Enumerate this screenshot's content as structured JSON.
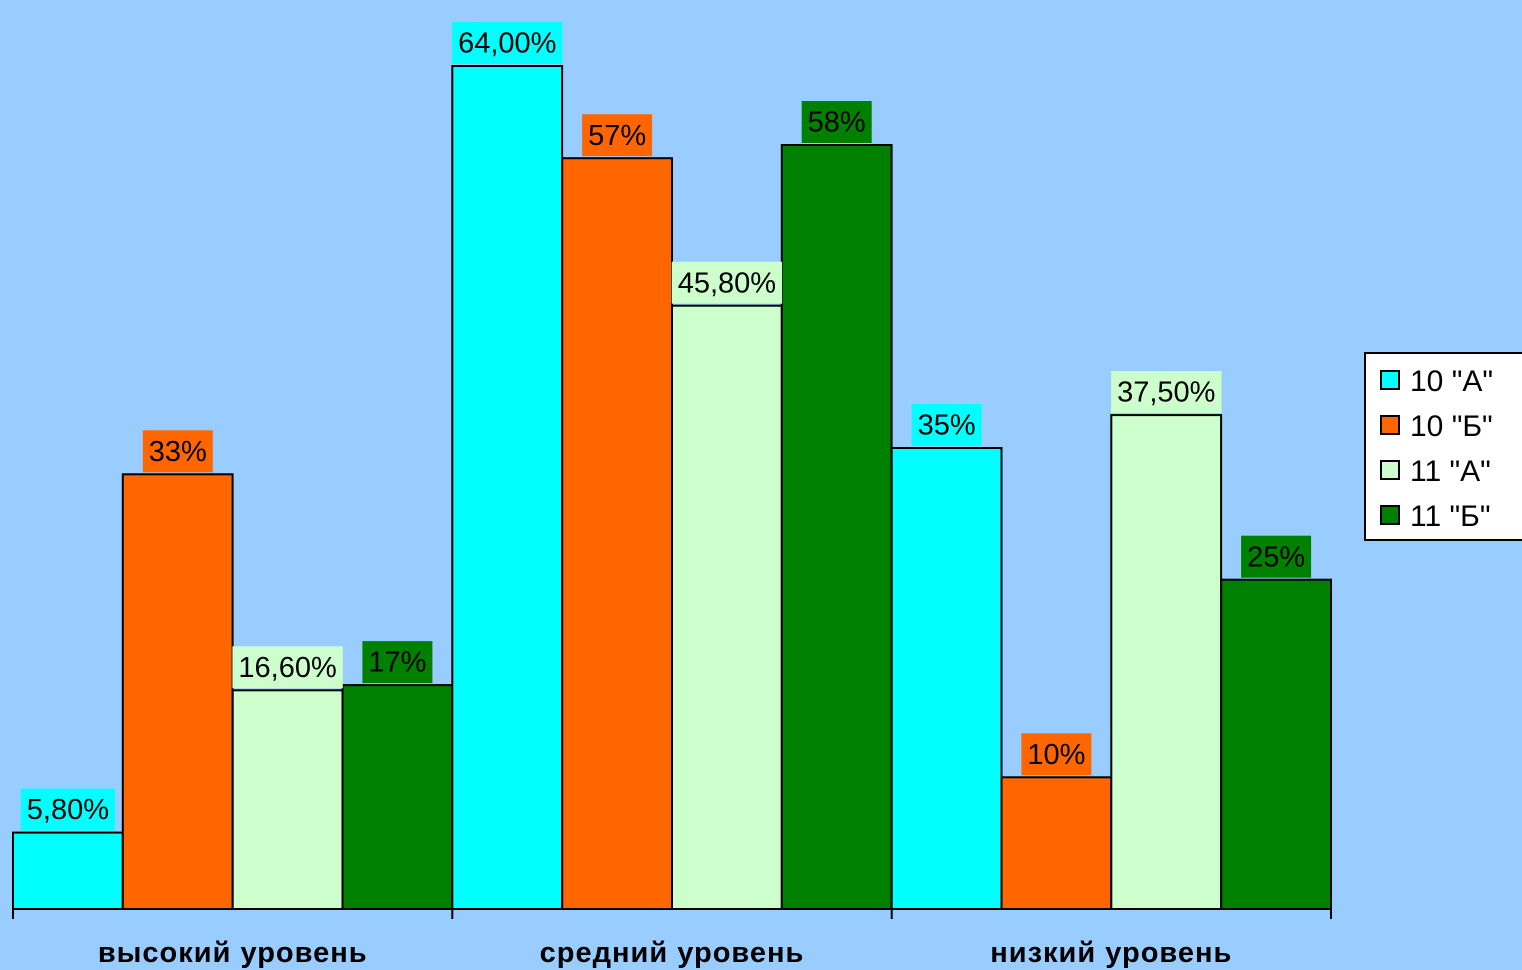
{
  "chart_data": {
    "type": "bar",
    "categories": [
      "высокий уровень",
      "средний уровень",
      "низкий уровень"
    ],
    "series": [
      {
        "name": "10 \"А\"",
        "color": "#00ffff",
        "values": [
          5.8,
          64.0,
          35.0
        ],
        "labels": [
          "5,80%",
          "64,00%",
          "35%"
        ]
      },
      {
        "name": "10 \"Б\"",
        "color": "#ff6600",
        "values": [
          33,
          57,
          10
        ],
        "labels": [
          "33%",
          "57%",
          "10%"
        ]
      },
      {
        "name": "11 \"А\"",
        "color": "#ccffcc",
        "values": [
          16.6,
          45.8,
          37.5
        ],
        "labels": [
          "16,60%",
          "45,80%",
          "37,50%"
        ]
      },
      {
        "name": "11 \"Б\"",
        "color": "#008000",
        "values": [
          17,
          58,
          25
        ],
        "labels": [
          "17%",
          "58%",
          "25%"
        ]
      }
    ],
    "title": "",
    "xlabel": "",
    "ylabel": "",
    "ylim": [
      0,
      64
    ],
    "grid": false,
    "legend_position": "right"
  }
}
